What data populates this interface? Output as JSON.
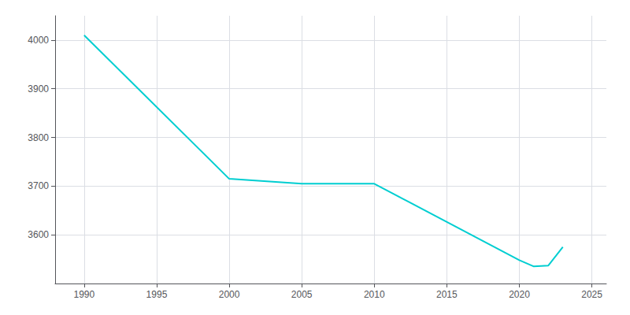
{
  "chart_data": {
    "type": "line",
    "x": [
      1990,
      2000,
      2005,
      2010,
      2020,
      2021,
      2022,
      2023
    ],
    "values": [
      4010,
      3715,
      3705,
      3705,
      3548,
      3535,
      3537,
      3575
    ],
    "color": "#00CED1",
    "xlim": [
      1988,
      2026
    ],
    "ylim": [
      3500,
      4050
    ],
    "xticks": [
      1990,
      1995,
      2000,
      2005,
      2010,
      2015,
      2020,
      2025
    ],
    "yticks": [
      3600,
      3700,
      3800,
      3900,
      4000
    ],
    "grid": true
  }
}
